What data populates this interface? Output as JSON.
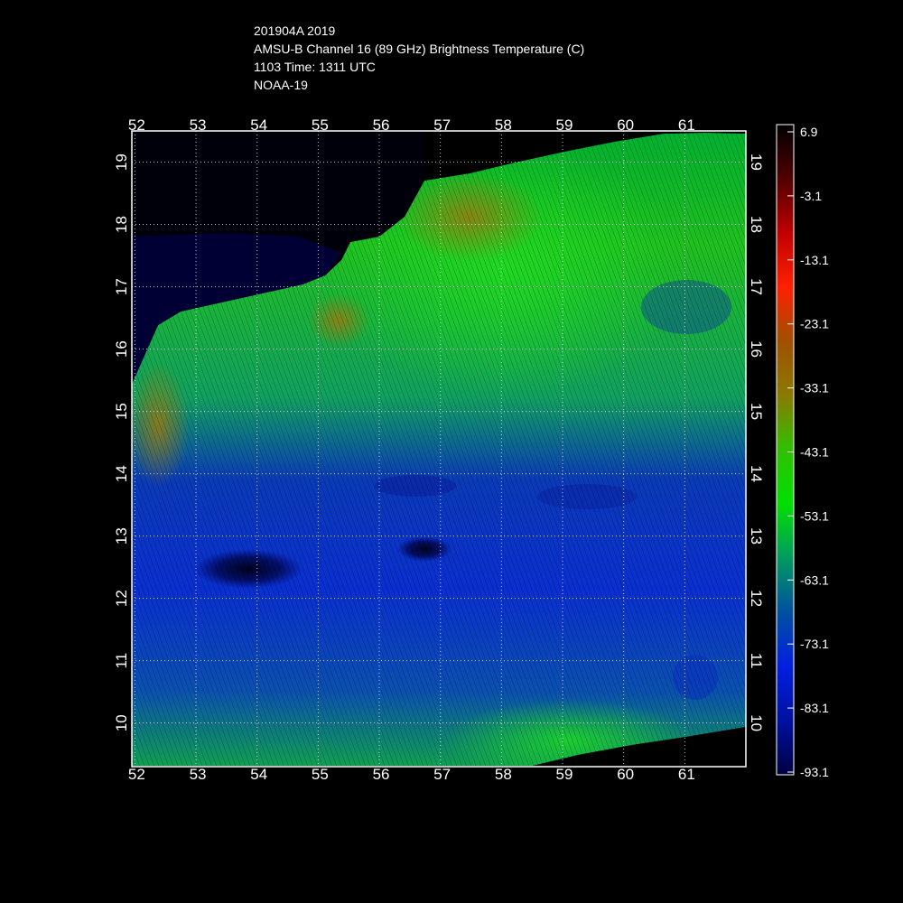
{
  "title": {
    "line1": "201904A 2019",
    "line2": "AMSU-B Channel 16 (89 GHz) Brightness Temperature (C)",
    "line3": "1103 Time: 1311 UTC",
    "line4": "NOAA-19"
  },
  "map": {
    "lon_ticks": [
      "52",
      "53",
      "54",
      "55",
      "56",
      "57",
      "58",
      "59",
      "60",
      "61"
    ],
    "lat_ticks": [
      "10",
      "11",
      "12",
      "13",
      "14",
      "15",
      "16",
      "17",
      "18",
      "19"
    ],
    "lon_range": [
      51.95,
      62.0
    ],
    "lat_range": [
      9.3,
      19.5
    ],
    "grid": true,
    "grid_color": "#ffffff"
  },
  "colorbar": {
    "labels": [
      "6.9",
      "-3.1",
      "-13.1",
      "-23.1",
      "-33.1",
      "-43.1",
      "-53.1",
      "-63.1",
      "-73.1",
      "-83.1",
      "-93.1"
    ],
    "range": [
      -93.1,
      6.9
    ],
    "colors": [
      "#000000",
      "#500000",
      "#c00000",
      "#ff2000",
      "#a05000",
      "#8a7a00",
      "#30c000",
      "#00e000",
      "#009a60",
      "#0050a0",
      "#0020e0",
      "#0010a0",
      "#000040"
    ]
  }
}
